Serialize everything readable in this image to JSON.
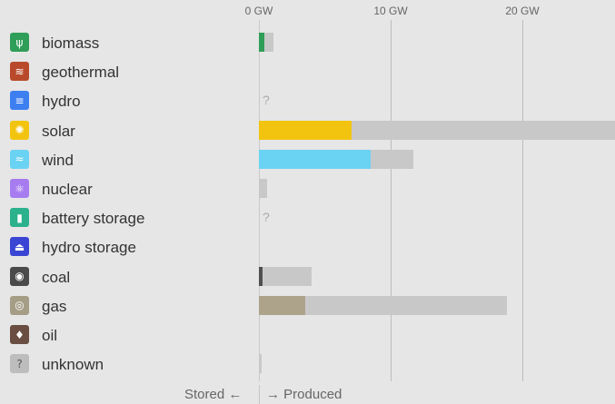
{
  "axis": {
    "ticks": [
      {
        "value": 0,
        "label": "0 GW"
      },
      {
        "value": 10,
        "label": "10 GW"
      },
      {
        "value": 20,
        "label": "20 GW"
      }
    ]
  },
  "chart_data": {
    "type": "bar",
    "orientation": "horizontal",
    "unit": "GW",
    "xlim": [
      0,
      27
    ],
    "categories": [
      "biomass",
      "geothermal",
      "hydro",
      "solar",
      "wind",
      "nuclear",
      "battery storage",
      "hydro storage",
      "coal",
      "gas",
      "oil",
      "unknown"
    ],
    "series": [
      {
        "values": [
          0.4,
          0,
          null,
          7.0,
          8.5,
          0,
          null,
          0,
          0.25,
          3.5,
          0,
          0
        ]
      },
      {
        "values": [
          1.1,
          0,
          null,
          27,
          11.7,
          0.6,
          null,
          0,
          4.0,
          18.8,
          0,
          0.2
        ]
      }
    ],
    "unknown_marker": "?",
    "grid": true
  },
  "sources": [
    {
      "name": "biomass",
      "icon": "sprout-icon",
      "color": "#2f9e58",
      "glyph": "ψ"
    },
    {
      "name": "geothermal",
      "icon": "heat-waves-icon",
      "color": "#b84a2b",
      "glyph": "≋"
    },
    {
      "name": "hydro",
      "icon": "water-waves-icon",
      "color": "#3d7ff0",
      "glyph": "≡"
    },
    {
      "name": "solar",
      "icon": "sun-icon",
      "color": "#f2c40f",
      "glyph": "✺"
    },
    {
      "name": "wind",
      "icon": "wind-icon",
      "color": "#6ad2f2",
      "glyph": "≈"
    },
    {
      "name": "nuclear",
      "icon": "atom-icon",
      "color": "#a77cf0",
      "glyph": "⚛"
    },
    {
      "name": "battery storage",
      "icon": "battery-icon",
      "color": "#2bb18c",
      "glyph": "▮"
    },
    {
      "name": "hydro storage",
      "icon": "dam-icon",
      "color": "#3a45d4",
      "glyph": "⏏"
    },
    {
      "name": "coal",
      "icon": "coal-icon",
      "color": "#4a4a4a",
      "glyph": "◉"
    },
    {
      "name": "gas",
      "icon": "gas-flame-icon",
      "color": "#a69d86",
      "glyph": "◎"
    },
    {
      "name": "oil",
      "icon": "oil-drop-icon",
      "color": "#6a4e42",
      "glyph": "♦"
    },
    {
      "name": "unknown",
      "icon": "question-icon",
      "color": "#bdbdbd",
      "glyph": "?"
    }
  ],
  "colors": {
    "capacity_bar": "#c8c8c8",
    "production": [
      "#2f9e58",
      "#b84a2b",
      "#3d7ff0",
      "#f2c40f",
      "#6ad2f2",
      "#a77cf0",
      "#2bb18c",
      "#3a45d4",
      "#4f4f4f",
      "#ada38b",
      "#6a4e42",
      "#bdbdbd"
    ]
  },
  "footer": {
    "stored_label": "Stored ←",
    "produced_label": "→ Produced"
  }
}
